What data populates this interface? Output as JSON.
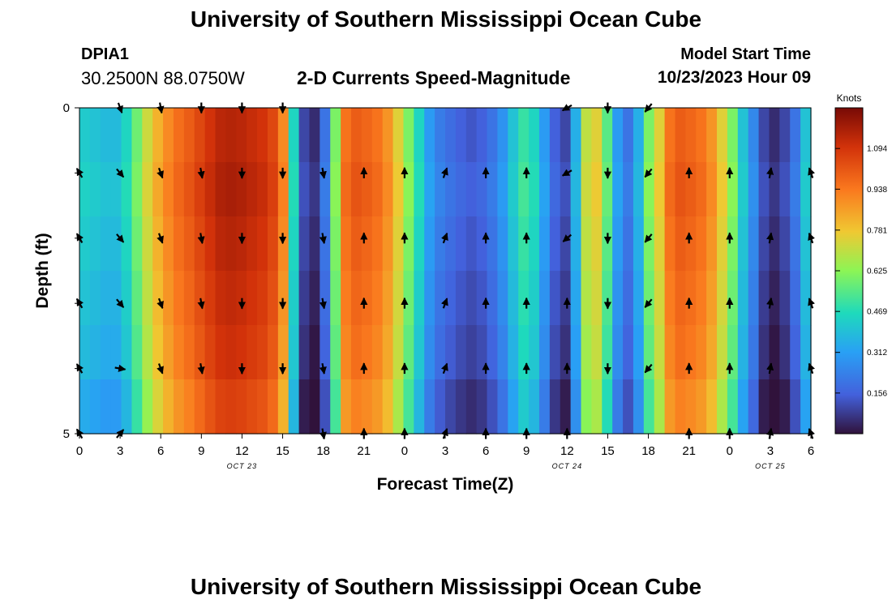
{
  "header": {
    "title": "University of Southern Mississippi Ocean Cube",
    "station_id": "DPIA1",
    "coords": "30.2500N  88.0750W",
    "plot_title": "2-D Currents Speed-Magnitude",
    "start_label": "Model Start Time",
    "start_value": "10/23/2023 Hour 09"
  },
  "footer": {
    "title": "University of Southern Mississippi Ocean Cube"
  },
  "chart_data": {
    "type": "heatmap",
    "title": "2-D Currents Speed-Magnitude",
    "xlabel": "Forecast Time(Z)",
    "ylabel": "Depth (ft)",
    "x_ticks": [
      "0",
      "3",
      "6",
      "9",
      "12",
      "15",
      "18",
      "21",
      "0",
      "3",
      "6",
      "9",
      "12",
      "15",
      "18",
      "21",
      "0",
      "3",
      "6"
    ],
    "date_labels": [
      {
        "label": "OCT 23",
        "tick_index": 4
      },
      {
        "label": "OCT 24",
        "tick_index": 12
      },
      {
        "label": "OCT 25",
        "tick_index": 17
      }
    ],
    "y_ticks": [
      "0",
      "",
      "",
      "",
      "",
      "5"
    ],
    "ylim": [
      0,
      5
    ],
    "depth_levels": 6,
    "time_steps_hours": 54,
    "colorbar": {
      "units": "Knots",
      "min": 0.0,
      "max": 1.25,
      "ticks": [
        "0.156",
        "0.312",
        "0.469",
        "0.625",
        "0.781",
        "0.938",
        "1.094"
      ]
    },
    "speed_profile_knots": [
      0.42,
      0.4,
      0.38,
      0.38,
      0.45,
      0.58,
      0.72,
      0.82,
      0.9,
      0.96,
      1.0,
      1.05,
      1.1,
      1.14,
      1.15,
      1.14,
      1.12,
      1.1,
      1.05,
      0.9,
      0.45,
      0.1,
      0.05,
      0.2,
      0.6,
      0.95,
      1.0,
      0.98,
      0.95,
      0.88,
      0.75,
      0.6,
      0.45,
      0.3,
      0.22,
      0.18,
      0.15,
      0.13,
      0.15,
      0.2,
      0.28,
      0.4,
      0.5,
      0.45,
      0.3,
      0.15,
      0.1,
      0.35,
      0.7,
      0.75,
      0.55,
      0.3,
      0.2,
      0.35,
      0.6,
      0.75,
      0.95,
      1.0,
      0.98,
      0.95,
      0.88,
      0.75,
      0.6,
      0.4,
      0.25,
      0.1,
      0.05,
      0.1,
      0.2,
      0.4
    ],
    "depth_modifier": [
      0.0,
      0.02,
      0.0,
      -0.02,
      -0.04,
      -0.08
    ],
    "arrow_times_hours": [
      0,
      3,
      6,
      9,
      12,
      15,
      18,
      21,
      24,
      27,
      30,
      33,
      36,
      39,
      42,
      45,
      48,
      51,
      54
    ],
    "arrow_direction_deg_by_depth": [
      [
        null,
        160,
        170,
        180,
        180,
        180,
        null,
        null,
        null,
        null,
        null,
        null,
        240,
        180,
        220,
        null,
        null,
        null,
        null
      ],
      [
        330,
        140,
        160,
        170,
        180,
        180,
        170,
        0,
        0,
        20,
        0,
        0,
        240,
        180,
        220,
        0,
        0,
        10,
        340
      ],
      [
        330,
        140,
        160,
        170,
        180,
        180,
        170,
        0,
        0,
        20,
        0,
        0,
        230,
        180,
        220,
        0,
        0,
        10,
        340
      ],
      [
        330,
        140,
        160,
        170,
        180,
        180,
        170,
        0,
        0,
        20,
        0,
        0,
        0,
        180,
        220,
        0,
        0,
        10,
        340
      ],
      [
        330,
        100,
        160,
        170,
        180,
        180,
        170,
        0,
        0,
        20,
        0,
        0,
        0,
        180,
        220,
        0,
        0,
        10,
        340
      ],
      [
        330,
        40,
        null,
        null,
        null,
        null,
        170,
        0,
        0,
        20,
        0,
        0,
        0,
        null,
        null,
        0,
        0,
        10,
        340
      ]
    ]
  }
}
